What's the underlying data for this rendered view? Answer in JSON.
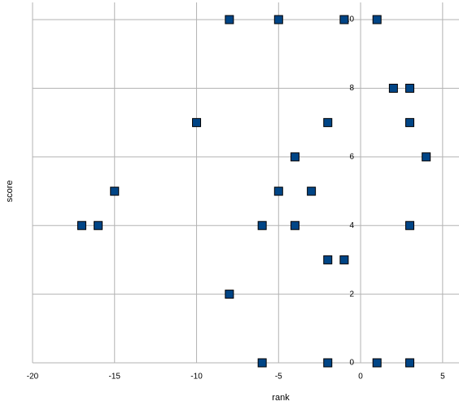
{
  "chart_data": {
    "type": "scatter",
    "x_label": "rank",
    "y_label": "score",
    "x": [
      -8,
      -5,
      -1,
      1,
      2,
      3,
      -10,
      -2,
      3,
      -4,
      4,
      -15,
      -5,
      -3,
      -17,
      -16,
      -6,
      -4,
      3,
      -2,
      -1,
      -8,
      -6,
      -2,
      1,
      3
    ],
    "values": [
      10,
      10,
      10,
      10,
      8,
      8,
      7,
      7,
      7,
      6,
      6,
      5,
      5,
      5,
      4,
      4,
      4,
      4,
      4,
      3,
      3,
      2,
      0,
      0,
      0,
      0
    ],
    "color": "#004586",
    "xlim": [
      -20,
      6
    ],
    "xticks": [
      -20,
      -15,
      -10,
      -5,
      0,
      5
    ],
    "ylim": [
      0,
      10.5
    ],
    "yticks": [
      0,
      2,
      4,
      6,
      8,
      10
    ],
    "grid": true
  }
}
